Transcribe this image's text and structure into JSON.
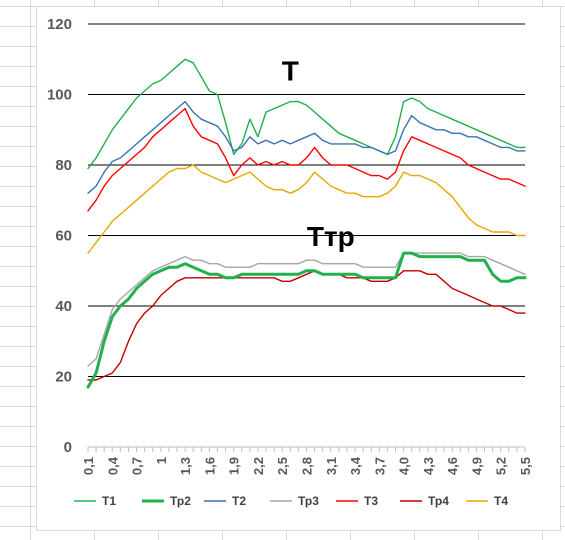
{
  "chart_data": {
    "type": "line",
    "x": [
      0.1,
      0.2,
      0.3,
      0.4,
      0.5,
      0.6,
      0.7,
      0.8,
      0.9,
      1.0,
      1.1,
      1.2,
      1.3,
      1.4,
      1.5,
      1.6,
      1.7,
      1.8,
      1.9,
      2.0,
      2.1,
      2.2,
      2.3,
      2.4,
      2.5,
      2.6,
      2.7,
      2.8,
      2.9,
      3.0,
      3.1,
      3.2,
      3.3,
      3.4,
      3.5,
      3.6,
      3.7,
      3.8,
      3.9,
      4.0,
      4.1,
      4.2,
      4.3,
      4.4,
      4.5,
      4.6,
      4.7,
      4.8,
      4.9,
      5.0,
      5.1,
      5.2,
      5.3,
      5.4,
      5.5
    ],
    "xticks": [
      "0,1",
      "0,4",
      "0,7",
      "1",
      "1,3",
      "1,6",
      "1,9",
      "2,2",
      "2,5",
      "2,8",
      "3,1",
      "3,4",
      "3,7",
      "4,0",
      "4,3",
      "4,6",
      "4,9",
      "5,2",
      "5,5"
    ],
    "xtick_values": [
      0.1,
      0.4,
      0.7,
      1.0,
      1.3,
      1.6,
      1.9,
      2.2,
      2.5,
      2.8,
      3.1,
      3.4,
      3.7,
      4.0,
      4.3,
      4.6,
      4.9,
      5.2,
      5.5
    ],
    "yticks": [
      "0",
      "20",
      "40",
      "60",
      "80",
      "100",
      "120"
    ],
    "ylim": [
      0,
      120
    ],
    "grid": "horizontal",
    "legend_position": "bottom",
    "annotations": [
      {
        "text": "T",
        "x": 2.6,
        "y": 104
      },
      {
        "text": "Ттр",
        "x": 3.1,
        "y": 57
      }
    ],
    "series": [
      {
        "name": "T1",
        "color": "#21b04b",
        "width": 1.4,
        "values": [
          79,
          82,
          86,
          90,
          93,
          96,
          99,
          101,
          103,
          104,
          106,
          108,
          110,
          109,
          105,
          101,
          100,
          92,
          83,
          86,
          93,
          88,
          95,
          96,
          97,
          98,
          98,
          97,
          95,
          93,
          91,
          89,
          88,
          87,
          86,
          85,
          84,
          83,
          88,
          98,
          99,
          98,
          96,
          95,
          94,
          93,
          92,
          91,
          90,
          89,
          88,
          87,
          86,
          85,
          85
        ]
      },
      {
        "name": "Тр2",
        "color": "#21b04b",
        "width": 3,
        "values": [
          17,
          21,
          30,
          37,
          40,
          42,
          45,
          47,
          49,
          50,
          51,
          51,
          52,
          51,
          50,
          49,
          49,
          48,
          48,
          49,
          49,
          49,
          49,
          49,
          49,
          49,
          49,
          50,
          50,
          49,
          49,
          49,
          49,
          49,
          48,
          48,
          48,
          48,
          48,
          55,
          55,
          54,
          54,
          54,
          54,
          54,
          54,
          53,
          53,
          53,
          49,
          47,
          47,
          48,
          48
        ]
      },
      {
        "name": "T2",
        "color": "#3a74b2",
        "width": 1.4,
        "values": [
          72,
          74,
          78,
          81,
          82,
          84,
          86,
          88,
          90,
          92,
          94,
          96,
          98,
          95,
          93,
          92,
          91,
          88,
          84,
          85,
          88,
          86,
          87,
          86,
          87,
          86,
          87,
          88,
          89,
          87,
          86,
          86,
          86,
          86,
          85,
          85,
          84,
          83,
          84,
          90,
          94,
          92,
          91,
          90,
          90,
          89,
          89,
          88,
          88,
          87,
          86,
          85,
          85,
          84,
          84
        ]
      },
      {
        "name": "Тр3",
        "color": "#a6a6a6",
        "width": 1.4,
        "values": [
          23,
          25,
          32,
          39,
          42,
          44,
          46,
          48,
          50,
          51,
          52,
          53,
          54,
          53,
          53,
          52,
          52,
          51,
          51,
          51,
          51,
          52,
          52,
          52,
          52,
          52,
          52,
          53,
          53,
          52,
          52,
          52,
          52,
          52,
          51,
          51,
          51,
          51,
          51,
          55,
          55,
          55,
          55,
          55,
          55,
          55,
          55,
          54,
          54,
          54,
          53,
          52,
          51,
          50,
          49
        ]
      },
      {
        "name": "T3",
        "color": "#ff0000",
        "width": 1.4,
        "values": [
          67,
          70,
          74,
          77,
          79,
          81,
          83,
          85,
          88,
          90,
          92,
          94,
          96,
          91,
          88,
          87,
          86,
          82,
          77,
          80,
          82,
          80,
          81,
          80,
          81,
          80,
          80,
          82,
          85,
          82,
          80,
          80,
          80,
          79,
          78,
          77,
          77,
          76,
          78,
          84,
          88,
          87,
          86,
          85,
          84,
          83,
          82,
          80,
          79,
          78,
          77,
          76,
          76,
          75,
          74
        ]
      },
      {
        "name": "Тр4",
        "color": "#c00000",
        "width": 1.4,
        "values": [
          19,
          19,
          20,
          21,
          24,
          30,
          35,
          38,
          40,
          43,
          45,
          47,
          48,
          48,
          48,
          48,
          48,
          48,
          48,
          48,
          48,
          48,
          48,
          48,
          47,
          47,
          48,
          49,
          50,
          49,
          49,
          49,
          48,
          48,
          48,
          47,
          47,
          47,
          48,
          50,
          50,
          50,
          49,
          49,
          47,
          45,
          44,
          43,
          42,
          41,
          40,
          40,
          39,
          38,
          38
        ]
      },
      {
        "name": "T4",
        "color": "#e6a700",
        "width": 1.4,
        "values": [
          55,
          58,
          61,
          64,
          66,
          68,
          70,
          72,
          74,
          76,
          78,
          79,
          79,
          80,
          78,
          77,
          76,
          75,
          76,
          77,
          78,
          76,
          74,
          73,
          73,
          72,
          73,
          75,
          78,
          76,
          74,
          73,
          72,
          72,
          71,
          71,
          71,
          72,
          74,
          78,
          77,
          77,
          76,
          75,
          73,
          71,
          68,
          65,
          63,
          62,
          61,
          61,
          61,
          60,
          60
        ]
      }
    ]
  }
}
